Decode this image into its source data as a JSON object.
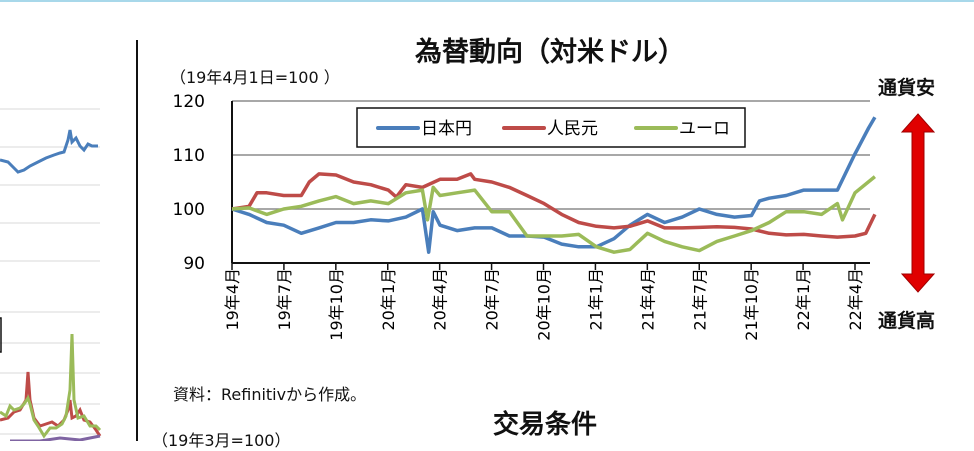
{
  "chart_data": {
    "type": "line",
    "title": "為替動向（対米ドル）",
    "subtitle": "（19年4月1日=100 ）",
    "xlabel": "",
    "ylabel": "",
    "ylim": [
      90,
      120
    ],
    "yticks": [
      "120",
      "110",
      "100",
      "90"
    ],
    "xticks": [
      "19年4月",
      "19年7月",
      "19年10月",
      "20年1月",
      "20年4月",
      "20年7月",
      "20年10月",
      "21年1月",
      "21年4月",
      "21年7月",
      "21年10月",
      "22年1月",
      "22年4月"
    ],
    "grid": true,
    "legend_position": "top",
    "series": [
      {
        "name": "日本円",
        "color": "#4a7ebb",
        "points": [
          [
            "2019-04-01",
            100
          ],
          [
            "2019-05-01",
            99
          ],
          [
            "2019-06-01",
            97.5
          ],
          [
            "2019-07-01",
            97
          ],
          [
            "2019-08-01",
            95.5
          ],
          [
            "2019-09-01",
            96.5
          ],
          [
            "2019-10-01",
            97.5
          ],
          [
            "2019-11-01",
            97.5
          ],
          [
            "2019-12-01",
            98
          ],
          [
            "2020-01-01",
            97.8
          ],
          [
            "2020-02-01",
            98.5
          ],
          [
            "2020-03-01",
            100
          ],
          [
            "2020-03-12",
            92
          ],
          [
            "2020-03-20",
            99.5
          ],
          [
            "2020-04-01",
            97
          ],
          [
            "2020-05-01",
            96
          ],
          [
            "2020-06-01",
            96.5
          ],
          [
            "2020-07-01",
            96.5
          ],
          [
            "2020-08-01",
            95
          ],
          [
            "2020-09-01",
            95
          ],
          [
            "2020-10-01",
            94.8
          ],
          [
            "2020-11-01",
            93.5
          ],
          [
            "2020-12-01",
            93
          ],
          [
            "2021-01-01",
            93
          ],
          [
            "2021-02-01",
            94.5
          ],
          [
            "2021-03-01",
            97
          ],
          [
            "2021-04-01",
            99
          ],
          [
            "2021-05-01",
            97.5
          ],
          [
            "2021-06-01",
            98.5
          ],
          [
            "2021-07-01",
            100
          ],
          [
            "2021-08-01",
            99
          ],
          [
            "2021-09-01",
            98.5
          ],
          [
            "2021-10-01",
            98.8
          ],
          [
            "2021-10-15",
            101.5
          ],
          [
            "2021-11-01",
            102
          ],
          [
            "2021-12-01",
            102.5
          ],
          [
            "2022-01-01",
            103.5
          ],
          [
            "2022-02-01",
            103.5
          ],
          [
            "2022-03-01",
            103.5
          ],
          [
            "2022-03-31",
            110
          ],
          [
            "2022-04-10",
            112
          ],
          [
            "2022-04-25",
            115
          ],
          [
            "2022-05-06",
            117
          ]
        ]
      },
      {
        "name": "人民元",
        "color": "#be4b48",
        "points": [
          [
            "2019-04-01",
            100
          ],
          [
            "2019-05-01",
            100.5
          ],
          [
            "2019-05-15",
            103
          ],
          [
            "2019-06-01",
            103
          ],
          [
            "2019-07-01",
            102.5
          ],
          [
            "2019-08-01",
            102.5
          ],
          [
            "2019-08-15",
            105
          ],
          [
            "2019-09-01",
            106.5
          ],
          [
            "2019-10-01",
            106.3
          ],
          [
            "2019-11-01",
            105
          ],
          [
            "2019-12-01",
            104.5
          ],
          [
            "2020-01-01",
            103.5
          ],
          [
            "2020-01-15",
            102.2
          ],
          [
            "2020-02-01",
            104.5
          ],
          [
            "2020-03-01",
            104
          ],
          [
            "2020-04-01",
            105.5
          ],
          [
            "2020-05-01",
            105.5
          ],
          [
            "2020-05-25",
            106.5
          ],
          [
            "2020-06-01",
            105.5
          ],
          [
            "2020-07-01",
            105
          ],
          [
            "2020-08-01",
            104
          ],
          [
            "2020-09-01",
            102.5
          ],
          [
            "2020-10-01",
            101
          ],
          [
            "2020-11-01",
            99
          ],
          [
            "2020-12-01",
            97.5
          ],
          [
            "2021-01-01",
            96.8
          ],
          [
            "2021-02-01",
            96.5
          ],
          [
            "2021-03-01",
            96.8
          ],
          [
            "2021-04-01",
            97.8
          ],
          [
            "2021-05-01",
            96.5
          ],
          [
            "2021-06-01",
            96.5
          ],
          [
            "2021-07-01",
            96.6
          ],
          [
            "2021-08-01",
            96.7
          ],
          [
            "2021-09-01",
            96.6
          ],
          [
            "2021-10-01",
            96.3
          ],
          [
            "2021-11-01",
            95.5
          ],
          [
            "2021-12-01",
            95.2
          ],
          [
            "2022-01-01",
            95.3
          ],
          [
            "2022-02-01",
            95
          ],
          [
            "2022-03-01",
            94.8
          ],
          [
            "2022-04-01",
            95
          ],
          [
            "2022-04-20",
            95.5
          ],
          [
            "2022-05-06",
            99
          ]
        ]
      },
      {
        "name": "ユーロ",
        "color": "#9bbb59",
        "points": [
          [
            "2019-04-01",
            100
          ],
          [
            "2019-05-01",
            100.2
          ],
          [
            "2019-06-01",
            99
          ],
          [
            "2019-07-01",
            100
          ],
          [
            "2019-08-01",
            100.5
          ],
          [
            "2019-09-01",
            101.5
          ],
          [
            "2019-10-01",
            102.3
          ],
          [
            "2019-11-01",
            101
          ],
          [
            "2019-12-01",
            101.5
          ],
          [
            "2020-01-01",
            101
          ],
          [
            "2020-02-01",
            103
          ],
          [
            "2020-03-01",
            103.5
          ],
          [
            "2020-03-10",
            98
          ],
          [
            "2020-03-20",
            104
          ],
          [
            "2020-04-01",
            102.5
          ],
          [
            "2020-05-01",
            103
          ],
          [
            "2020-06-01",
            103.5
          ],
          [
            "2020-07-01",
            99.5
          ],
          [
            "2020-08-01",
            99.5
          ],
          [
            "2020-09-01",
            95
          ],
          [
            "2020-10-01",
            95
          ],
          [
            "2020-11-01",
            95
          ],
          [
            "2020-12-01",
            95.3
          ],
          [
            "2021-01-01",
            93
          ],
          [
            "2021-02-01",
            92
          ],
          [
            "2021-03-01",
            92.5
          ],
          [
            "2021-04-01",
            95.5
          ],
          [
            "2021-05-01",
            94
          ],
          [
            "2021-06-01",
            93
          ],
          [
            "2021-07-01",
            92.3
          ],
          [
            "2021-08-01",
            94
          ],
          [
            "2021-09-01",
            95
          ],
          [
            "2021-10-01",
            96
          ],
          [
            "2021-11-01",
            97.5
          ],
          [
            "2021-12-01",
            99.5
          ],
          [
            "2022-01-01",
            99.5
          ],
          [
            "2022-02-01",
            99
          ],
          [
            "2022-03-01",
            101
          ],
          [
            "2022-03-10",
            98
          ],
          [
            "2022-04-01",
            103
          ],
          [
            "2022-05-06",
            106
          ]
        ]
      }
    ],
    "source": "資料：Refinitivから作成。"
  },
  "annotations": {
    "weak": "通貨安",
    "strong": "通貨高",
    "arrow_color": "#e00000"
  },
  "next_chart": {
    "title": "交易条件",
    "subtitle": "（19年3月=100）"
  }
}
